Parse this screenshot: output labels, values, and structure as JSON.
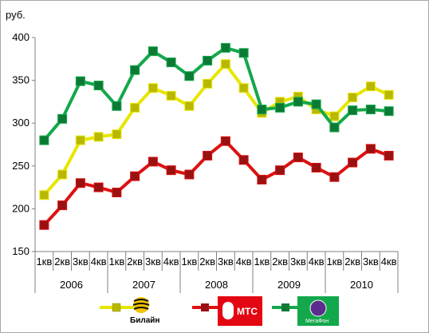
{
  "chart_data": {
    "type": "line",
    "ylabel": "руб.",
    "ylim": [
      150,
      400
    ],
    "yticks": [
      150,
      200,
      250,
      300,
      350,
      400
    ],
    "grid": false,
    "legend_position": "bottom",
    "x": [
      "1кв",
      "2кв",
      "3кв",
      "4кв",
      "1кв",
      "2кв",
      "3кв",
      "4кв",
      "1кв",
      "2кв",
      "3кв",
      "4кв",
      "1кв",
      "2кв",
      "3кв",
      "4кв",
      "1кв",
      "2кв",
      "3кв",
      "4кв"
    ],
    "years": [
      "2006",
      "2007",
      "2008",
      "2009",
      "2010"
    ],
    "series": [
      {
        "name": "Билайн",
        "color": "#e6e600",
        "marker": "#b8b800",
        "values": [
          216,
          240,
          280,
          284,
          287,
          318,
          341,
          332,
          320,
          346,
          369,
          341,
          312,
          325,
          331,
          316,
          308,
          330,
          343,
          333
        ]
      },
      {
        "name": "МТС",
        "color": "#dd1111",
        "marker": "#991111",
        "values": [
          181,
          204,
          230,
          225,
          219,
          238,
          255,
          245,
          240,
          262,
          279,
          257,
          234,
          245,
          260,
          248,
          237,
          254,
          270,
          262
        ]
      },
      {
        "name": "МегаФон",
        "color": "#13a84b",
        "marker": "#0c7a35",
        "values": [
          280,
          305,
          349,
          344,
          320,
          362,
          384,
          371,
          355,
          373,
          388,
          382,
          316,
          318,
          325,
          322,
          295,
          315,
          316,
          314
        ]
      }
    ]
  },
  "legend": {
    "beeline_text": "Билайн",
    "mts_text": "МТС",
    "megafon_text": "МегаФон"
  }
}
